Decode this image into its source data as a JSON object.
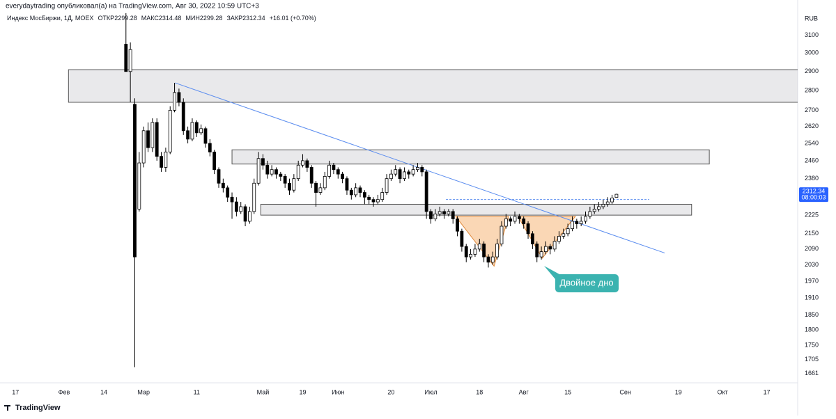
{
  "header": {
    "author_line": "everydaytrading опубликовал(а) на TradingView.com, Авг 30, 2022 10:59 UTC+3",
    "logo": "TradingView"
  },
  "chart_data": {
    "type": "candlestick",
    "title": "Индекс МосБиржи, 1Д, MOEX",
    "ohlc_labels": [
      "ОТКР",
      "МАКС",
      "МИН",
      "ЗАКР"
    ],
    "change": {
      "value": 16.01,
      "label": "+16.01 (+0.70%)"
    },
    "currency": "RUB",
    "countdown": "08:00:03",
    "log_scale": true,
    "grid": false,
    "up_color": "#ffffff",
    "down_color": "#000000",
    "ohlc": [
      [
        3050,
        3230,
        2900,
        2900
      ],
      [
        2900,
        3060,
        2740,
        3020
      ],
      [
        2730,
        2760,
        1681,
        2060
      ],
      [
        2250,
        2500,
        2240,
        2450
      ],
      [
        2450,
        2620,
        2430,
        2600
      ],
      [
        2600,
        2640,
        2500,
        2520
      ],
      [
        2520,
        2660,
        2500,
        2640
      ],
      [
        2640,
        2660,
        2460,
        2480
      ],
      [
        2480,
        2500,
        2410,
        2430
      ],
      [
        2430,
        2520,
        2410,
        2500
      ],
      [
        2500,
        2720,
        2490,
        2700
      ],
      [
        2700,
        2840,
        2690,
        2790
      ],
      [
        2790,
        2810,
        2720,
        2740
      ],
      [
        2740,
        2760,
        2580,
        2600
      ],
      [
        2600,
        2620,
        2540,
        2560
      ],
      [
        2560,
        2660,
        2550,
        2640
      ],
      [
        2640,
        2650,
        2570,
        2590
      ],
      [
        2590,
        2630,
        2580,
        2610
      ],
      [
        2610,
        2620,
        2520,
        2540
      ],
      [
        2540,
        2560,
        2480,
        2500
      ],
      [
        2500,
        2510,
        2400,
        2420
      ],
      [
        2420,
        2430,
        2340,
        2360
      ],
      [
        2360,
        2380,
        2320,
        2340
      ],
      [
        2340,
        2350,
        2280,
        2300
      ],
      [
        2300,
        2320,
        2210,
        2280
      ],
      [
        2280,
        2300,
        2220,
        2240
      ],
      [
        2240,
        2280,
        2230,
        2260
      ],
      [
        2260,
        2270,
        2180,
        2200
      ],
      [
        2200,
        2260,
        2190,
        2240
      ],
      [
        2240,
        2380,
        2230,
        2360
      ],
      [
        2360,
        2500,
        2350,
        2470
      ],
      [
        2470,
        2490,
        2420,
        2440
      ],
      [
        2440,
        2460,
        2380,
        2400
      ],
      [
        2400,
        2440,
        2390,
        2420
      ],
      [
        2420,
        2430,
        2380,
        2400
      ],
      [
        2400,
        2410,
        2370,
        2390
      ],
      [
        2390,
        2400,
        2340,
        2360
      ],
      [
        2360,
        2380,
        2310,
        2330
      ],
      [
        2330,
        2400,
        2320,
        2380
      ],
      [
        2380,
        2460,
        2370,
        2440
      ],
      [
        2440,
        2490,
        2430,
        2460
      ],
      [
        2460,
        2470,
        2410,
        2430
      ],
      [
        2430,
        2440,
        2340,
        2360
      ],
      [
        2360,
        2370,
        2260,
        2320
      ],
      [
        2320,
        2360,
        2310,
        2340
      ],
      [
        2340,
        2410,
        2330,
        2390
      ],
      [
        2390,
        2460,
        2380,
        2440
      ],
      [
        2440,
        2450,
        2400,
        2420
      ],
      [
        2420,
        2430,
        2380,
        2400
      ],
      [
        2400,
        2410,
        2360,
        2380
      ],
      [
        2380,
        2390,
        2310,
        2330
      ],
      [
        2330,
        2340,
        2290,
        2310
      ],
      [
        2310,
        2360,
        2300,
        2340
      ],
      [
        2340,
        2350,
        2300,
        2320
      ],
      [
        2320,
        2330,
        2270,
        2300
      ],
      [
        2300,
        2310,
        2270,
        2290
      ],
      [
        2290,
        2300,
        2260,
        2280
      ],
      [
        2280,
        2310,
        2270,
        2290
      ],
      [
        2290,
        2340,
        2280,
        2320
      ],
      [
        2320,
        2400,
        2310,
        2380
      ],
      [
        2380,
        2420,
        2370,
        2400
      ],
      [
        2400,
        2440,
        2390,
        2420
      ],
      [
        2420,
        2430,
        2360,
        2380
      ],
      [
        2380,
        2430,
        2370,
        2410
      ],
      [
        2410,
        2420,
        2380,
        2400
      ],
      [
        2400,
        2440,
        2390,
        2420
      ],
      [
        2420,
        2450,
        2410,
        2430
      ],
      [
        2430,
        2440,
        2390,
        2410
      ],
      [
        2410,
        2420,
        2210,
        2240
      ],
      [
        2240,
        2250,
        2190,
        2210
      ],
      [
        2210,
        2250,
        2200,
        2230
      ],
      [
        2230,
        2260,
        2220,
        2240
      ],
      [
        2240,
        2250,
        2210,
        2230
      ],
      [
        2230,
        2250,
        2220,
        2240
      ],
      [
        2240,
        2250,
        2190,
        2210
      ],
      [
        2210,
        2220,
        2140,
        2160
      ],
      [
        2160,
        2170,
        2080,
        2100
      ],
      [
        2100,
        2110,
        2040,
        2060
      ],
      [
        2060,
        2090,
        2050,
        2070
      ],
      [
        2070,
        2110,
        2060,
        2090
      ],
      [
        2090,
        2130,
        2080,
        2110
      ],
      [
        2110,
        2120,
        2040,
        2060
      ],
      [
        2060,
        2070,
        2020,
        2040
      ],
      [
        2040,
        2080,
        2030,
        2060
      ],
      [
        2060,
        2130,
        2050,
        2110
      ],
      [
        2110,
        2200,
        2100,
        2180
      ],
      [
        2180,
        2230,
        2170,
        2210
      ],
      [
        2210,
        2220,
        2180,
        2200
      ],
      [
        2200,
        2240,
        2190,
        2220
      ],
      [
        2220,
        2230,
        2190,
        2210
      ],
      [
        2210,
        2220,
        2170,
        2190
      ],
      [
        2190,
        2200,
        2130,
        2150
      ],
      [
        2150,
        2160,
        2090,
        2110
      ],
      [
        2110,
        2120,
        2040,
        2060
      ],
      [
        2060,
        2100,
        2050,
        2080
      ],
      [
        2080,
        2120,
        2070,
        2100
      ],
      [
        2100,
        2110,
        2070,
        2090
      ],
      [
        2090,
        2140,
        2080,
        2120
      ],
      [
        2120,
        2160,
        2110,
        2140
      ],
      [
        2140,
        2170,
        2130,
        2150
      ],
      [
        2150,
        2190,
        2140,
        2170
      ],
      [
        2170,
        2220,
        2160,
        2200
      ],
      [
        2200,
        2210,
        2170,
        2190
      ],
      [
        2190,
        2220,
        2180,
        2200
      ],
      [
        2200,
        2240,
        2190,
        2220
      ],
      [
        2220,
        2260,
        2210,
        2240
      ],
      [
        2240,
        2270,
        2230,
        2250
      ],
      [
        2250,
        2280,
        2240,
        2260
      ],
      [
        2260,
        2290,
        2250,
        2270
      ],
      [
        2270,
        2300,
        2260,
        2280
      ],
      [
        2280,
        2310,
        2270,
        2296.33
      ],
      [
        2299.28,
        2314.48,
        2299.28,
        2312.34
      ]
    ],
    "xlim": [
      -28.5,
      152
    ],
    "xticks": [
      {
        "value": -25,
        "label": "17"
      },
      {
        "value": -14,
        "label": "Фев"
      },
      {
        "value": -5,
        "label": "14"
      },
      {
        "value": 4,
        "label": "Мар"
      },
      {
        "value": 16,
        "label": "11"
      },
      {
        "value": 31,
        "label": "Май"
      },
      {
        "value": 40,
        "label": "19"
      },
      {
        "value": 48,
        "label": "Июн"
      },
      {
        "value": 60,
        "label": "20"
      },
      {
        "value": 69,
        "label": "Июл"
      },
      {
        "value": 80,
        "label": "18"
      },
      {
        "value": 90,
        "label": "Авг"
      },
      {
        "value": 100,
        "label": "15"
      },
      {
        "value": 113,
        "label": "Сен"
      },
      {
        "value": 125,
        "label": "19"
      },
      {
        "value": 135,
        "label": "Окт"
      },
      {
        "value": 145,
        "label": "17"
      }
    ],
    "ylim": [
      1633,
      3246
    ],
    "yticks": [
      3100,
      3000,
      2900,
      2800,
      2700,
      2620,
      2540,
      2460,
      2380,
      2225,
      2150,
      2090,
      2030,
      1970,
      1910,
      1850,
      1800,
      1750,
      1705,
      1661
    ],
    "zones": [
      {
        "x": [
          -13,
          154
        ],
        "y": [
          2740,
          2910
        ]
      },
      {
        "x": [
          24,
          132
        ],
        "y": [
          2445,
          2510
        ]
      },
      {
        "x": [
          30.5,
          128
        ],
        "y": [
          2225,
          2270
        ]
      }
    ],
    "trendline": {
      "x": [
        11.1,
        121.9
      ],
      "y": [
        2840,
        2075
      ],
      "color": "#5b8def"
    },
    "level": {
      "x": [
        72.4,
        118.4
      ],
      "y": 2290,
      "color": "#5b8def"
    },
    "patterns": [
      {
        "x": [
          74.6,
          83.3,
          86.6
        ],
        "y": [
          2220,
          2025,
          2220
        ]
      },
      {
        "x": [
          88.7,
          94.2,
          101.7
        ],
        "y": [
          2220,
          2055,
          2220
        ]
      }
    ],
    "annotation": "Двойное дно"
  }
}
